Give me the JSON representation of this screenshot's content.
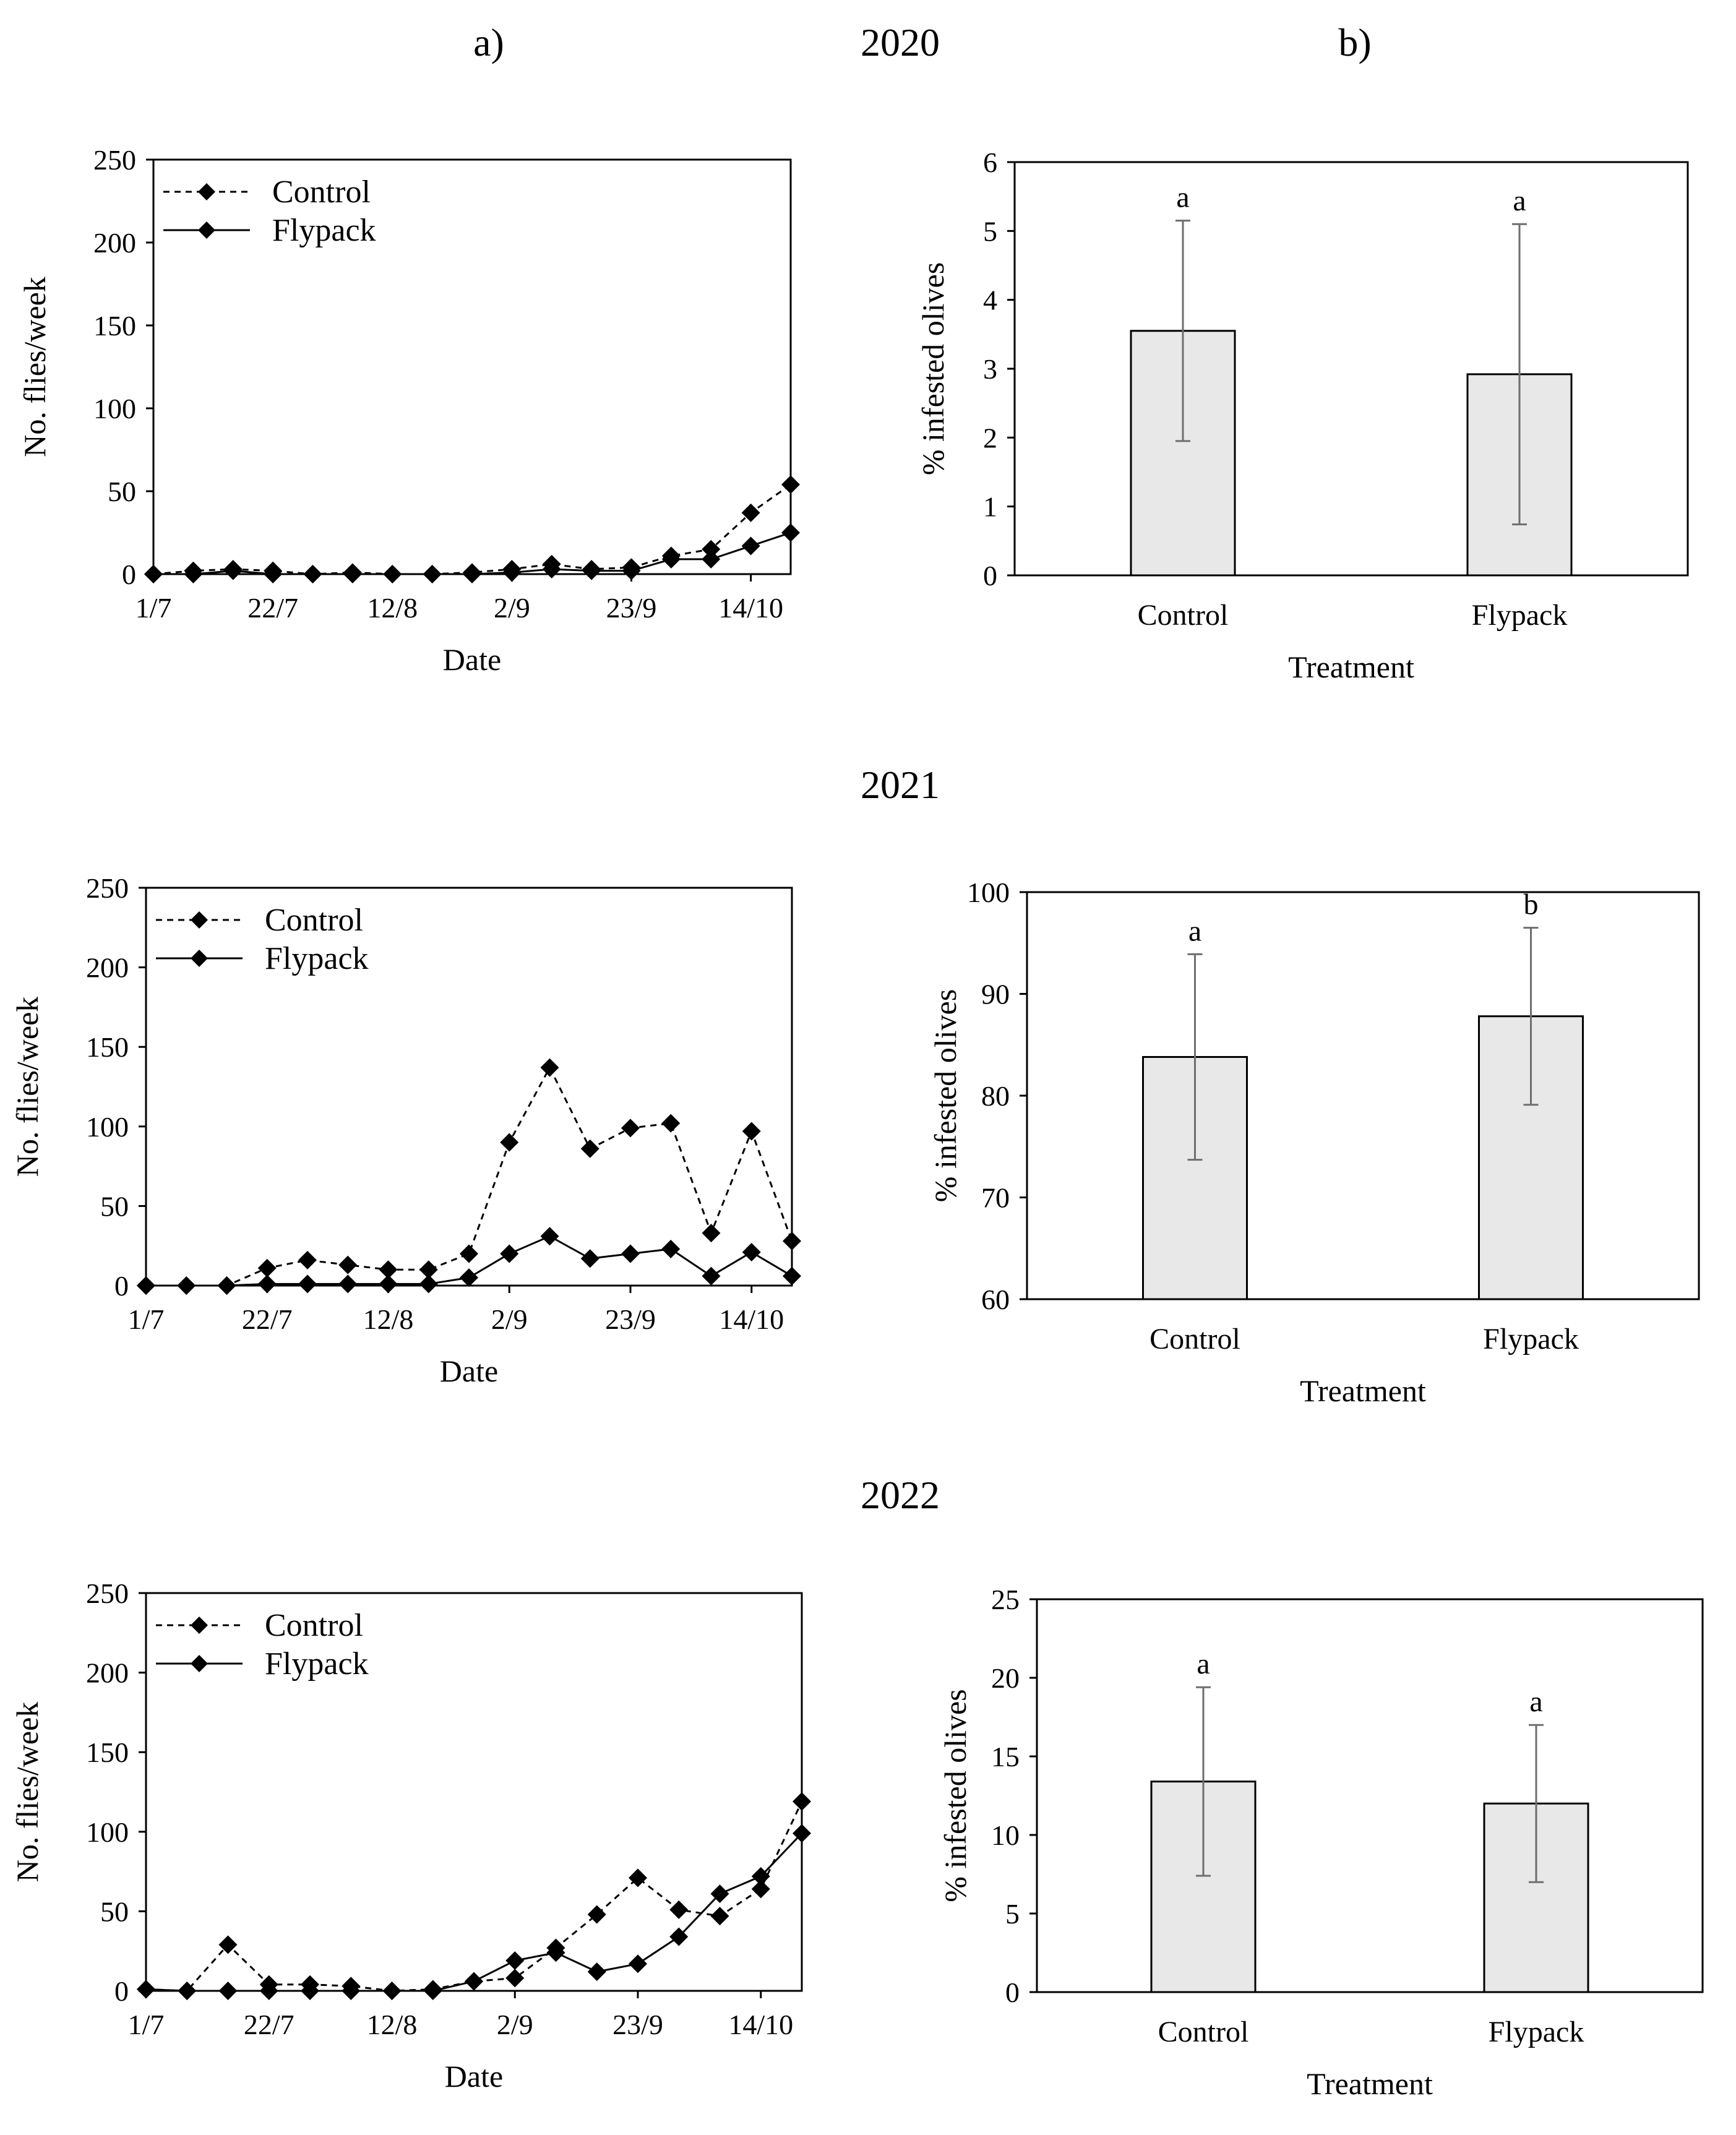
{
  "labels": {
    "panel_a": "a)",
    "panel_b": "b)"
  },
  "colors": {
    "bar_fill": "#e8e8e8",
    "line": "#000000",
    "error_bar": "#6e6e6e",
    "frame": "#000000"
  },
  "chart_data": [
    {
      "id": "line2020",
      "type": "line",
      "title": "2020",
      "xlabel": "Date",
      "ylabel": "No. flies/week",
      "ylim": [
        0,
        250
      ],
      "yticks": [
        "0",
        "50",
        "100",
        "150",
        "200",
        "250"
      ],
      "xticks": [
        {
          "label": "1/7",
          "week": 0
        },
        {
          "label": "22/7",
          "week": 3
        },
        {
          "label": "12/8",
          "week": 6
        },
        {
          "label": "2/9",
          "week": 9
        },
        {
          "label": "23/9",
          "week": 12
        },
        {
          "label": "14/10",
          "week": 15
        }
      ],
      "weeks": 17,
      "series": [
        {
          "name": "Control",
          "style": "dashed",
          "values": [
            0,
            2,
            3,
            2,
            0,
            1,
            0,
            0,
            1,
            3,
            6,
            3,
            4,
            11,
            15,
            37,
            54
          ]
        },
        {
          "name": "Flypack",
          "style": "solid",
          "values": [
            0,
            0,
            2,
            0,
            0,
            0,
            0,
            0,
            0,
            1,
            3,
            2,
            2,
            9,
            9,
            17,
            25
          ]
        }
      ]
    },
    {
      "id": "bar2020",
      "type": "bar",
      "xlabel": "Treatment",
      "ylabel": "% infested olives",
      "ylim": [
        0,
        6
      ],
      "yticks": [
        "0",
        "1",
        "2",
        "3",
        "4",
        "5",
        "6"
      ],
      "categories": [
        "Control",
        "Flypack"
      ],
      "values": [
        3.55,
        2.92
      ],
      "errors": [
        1.6,
        2.18
      ],
      "letters": [
        "a",
        "a"
      ]
    },
    {
      "id": "line2021",
      "type": "line",
      "title": "2021",
      "xlabel": "Date",
      "ylabel": "No. flies/week",
      "ylim": [
        0,
        250
      ],
      "yticks": [
        "0",
        "50",
        "100",
        "150",
        "200",
        "250"
      ],
      "xticks": [
        {
          "label": "1/7",
          "week": 0
        },
        {
          "label": "22/7",
          "week": 3
        },
        {
          "label": "12/8",
          "week": 6
        },
        {
          "label": "2/9",
          "week": 9
        },
        {
          "label": "23/9",
          "week": 12
        },
        {
          "label": "14/10",
          "week": 15
        }
      ],
      "weeks": 17,
      "series": [
        {
          "name": "Control",
          "style": "dashed",
          "values": [
            0,
            0,
            0,
            11,
            16,
            13,
            10,
            10,
            20,
            90,
            137,
            86,
            99,
            102,
            33,
            97,
            28
          ]
        },
        {
          "name": "Flypack",
          "style": "solid",
          "values": [
            0,
            0,
            0,
            1,
            1,
            1,
            1,
            1,
            5,
            20,
            31,
            17,
            20,
            23,
            6,
            21,
            6
          ]
        }
      ]
    },
    {
      "id": "bar2021",
      "type": "bar",
      "xlabel": "Treatment",
      "ylabel": "% infested olives",
      "ylim": [
        60,
        100
      ],
      "yticks": [
        "60",
        "70",
        "80",
        "90",
        "100"
      ],
      "categories": [
        "Control",
        "Flypack"
      ],
      "values": [
        83.8,
        87.8
      ],
      "errors": [
        10.1,
        8.7
      ],
      "letters": [
        "a",
        "b"
      ]
    },
    {
      "id": "line2022",
      "type": "line",
      "title": "2022",
      "xlabel": "Date",
      "ylabel": "No. flies/week",
      "ylim": [
        0,
        250
      ],
      "yticks": [
        "0",
        "50",
        "100",
        "150",
        "200",
        "250"
      ],
      "xticks": [
        {
          "label": "1/7",
          "week": 0
        },
        {
          "label": "22/7",
          "week": 3
        },
        {
          "label": "12/8",
          "week": 6
        },
        {
          "label": "2/9",
          "week": 9
        },
        {
          "label": "23/9",
          "week": 12
        },
        {
          "label": "14/10",
          "week": 15
        }
      ],
      "weeks": 17,
      "series": [
        {
          "name": "Control",
          "style": "dashed",
          "values": [
            1,
            0,
            29,
            4,
            4,
            3,
            0,
            1,
            6,
            8,
            27,
            48,
            71,
            51,
            47,
            64,
            119
          ]
        },
        {
          "name": "Flypack",
          "style": "solid",
          "values": [
            1,
            0,
            0,
            0,
            0,
            0,
            0,
            0,
            6,
            19,
            24,
            12,
            17,
            34,
            61,
            72,
            99
          ]
        }
      ]
    },
    {
      "id": "bar2022",
      "type": "bar",
      "xlabel": "Treatment",
      "ylabel": "% infested olives",
      "ylim": [
        0,
        25
      ],
      "yticks": [
        "0",
        "5",
        "10",
        "15",
        "20",
        "25"
      ],
      "categories": [
        "Control",
        "Flypack"
      ],
      "values": [
        13.4,
        12.0
      ],
      "errors": [
        6.0,
        5.0
      ],
      "letters": [
        "a",
        "a"
      ]
    }
  ]
}
